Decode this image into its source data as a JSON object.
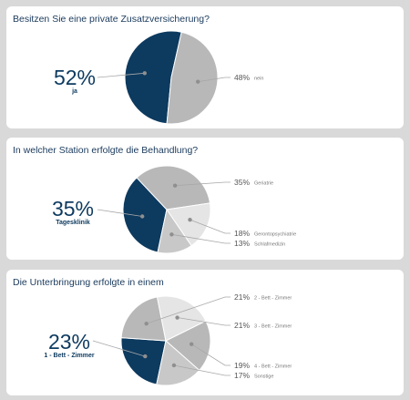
{
  "colors": {
    "dark": "#0d3a5f",
    "light1": "#b8b8b8",
    "light2": "#e5e5e5",
    "light3": "#c8c8c8",
    "background": "#d9d9d9",
    "line": "#a8a8a8",
    "dot": "#8f8f8f"
  },
  "chart_data": [
    {
      "type": "pie",
      "title": "Besitzen Sie eine private Zusatzversicherung?",
      "slices": [
        {
          "label": "ja",
          "value": 52,
          "pct_label": "52%",
          "color": "#0d3a5f"
        },
        {
          "label": "nein",
          "value": 48,
          "pct_label": "48%",
          "color": "#b8b8b8"
        }
      ]
    },
    {
      "type": "pie",
      "title": "In welcher Station erfolgte die Behandlung?",
      "slices": [
        {
          "label": "Tagesklinik",
          "value": 35,
          "pct_label": "35%",
          "color": "#0d3a5f"
        },
        {
          "label": "Geriatrie",
          "value": 35,
          "pct_label": "35%",
          "color": "#b8b8b8"
        },
        {
          "label": "Gerontopsychiatrie",
          "value": 18,
          "pct_label": "18%",
          "color": "#e5e5e5"
        },
        {
          "label": "Schlafmedizin",
          "value": 13,
          "pct_label": "13%",
          "color": "#c8c8c8"
        }
      ]
    },
    {
      "type": "pie",
      "title": "Die Unterbringung erfolgte in einem",
      "slices": [
        {
          "label": "1 - Bett - Zimmer",
          "value": 23,
          "pct_label": "23%",
          "color": "#0d3a5f"
        },
        {
          "label": "2 - Bett - Zimmer",
          "value": 21,
          "pct_label": "21%",
          "color": "#b8b8b8"
        },
        {
          "label": "3 - Bett - Zimmer",
          "value": 21,
          "pct_label": "21%",
          "color": "#e5e5e5"
        },
        {
          "label": "4 - Bett - Zimmer",
          "value": 19,
          "pct_label": "19%",
          "color": "#b8b8b8"
        },
        {
          "label": "Sonstige",
          "value": 17,
          "pct_label": "17%",
          "color": "#c8c8c8"
        }
      ]
    }
  ]
}
